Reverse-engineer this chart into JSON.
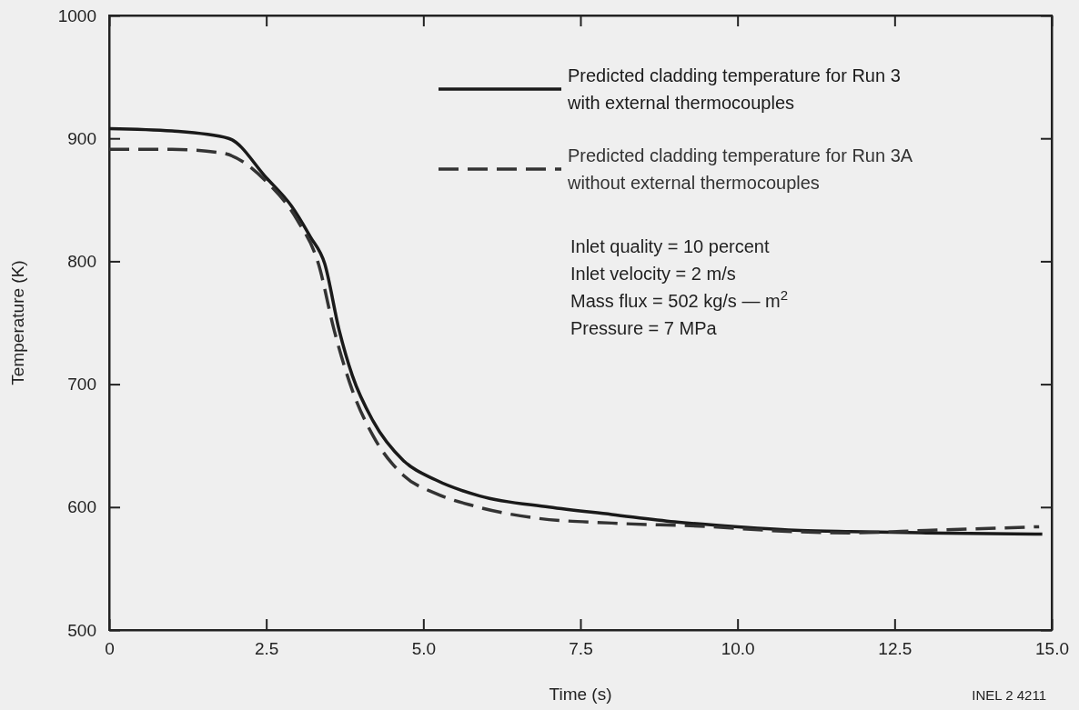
{
  "chart_data": {
    "type": "line",
    "xlabel": "Time (s)",
    "ylabel": "Temperature (K)",
    "xlim": [
      0,
      15
    ],
    "ylim": [
      500,
      1000
    ],
    "xticks": [
      0,
      2.5,
      {
        "value": 5,
        "label": "5.0"
      },
      7.5,
      {
        "value": 10,
        "label": "10.0"
      },
      12.5,
      {
        "value": 15,
        "label": "15.0"
      }
    ],
    "yticks": [
      500,
      600,
      700,
      800,
      900,
      1000
    ],
    "grid": false,
    "legend": "top right",
    "marker": "none",
    "series": [
      {
        "name": "Predicted cladding temperature for Run 3 with external thermocouples",
        "color": "#1a1a1a",
        "line_style": "solid",
        "x": [
          0,
          1.0,
          1.9,
          2.5,
          2.9,
          3.2,
          3.43,
          3.66,
          3.87,
          4.2,
          4.68,
          5.2,
          5.9,
          7.0,
          8.0,
          9.0,
          10.0,
          11.0,
          11.8,
          13.0,
          14.85
        ],
        "values": [
          908,
          906,
          900,
          868,
          845,
          820,
          798,
          744,
          707,
          670,
          638,
          622,
          609,
          600,
          594,
          588,
          584,
          581,
          580,
          579,
          578
        ]
      },
      {
        "name": "Predicted cladding temperature for Run 3A without external thermocouples",
        "color": "#333333",
        "line_style": "dashed",
        "x": [
          0,
          1.0,
          1.8,
          2.5,
          3.0,
          3.33,
          3.58,
          3.87,
          4.2,
          4.68,
          5.2,
          5.8,
          6.8,
          8.0,
          9.6,
          10.5,
          11.8,
          13.0,
          14.8
        ],
        "values": [
          891,
          891,
          888,
          865,
          833,
          798,
          744,
          695,
          658,
          626,
          611,
          601,
          591,
          587,
          584,
          581,
          579,
          581,
          584
        ]
      }
    ],
    "annotations": [
      "Inlet quality = 10 percent",
      "Inlet velocity = 2 m/s",
      "Mass flux = 502 kg/s — m$^{2}$",
      "Pressure = 7 MPa",
      "INEL 2 4211"
    ]
  }
}
